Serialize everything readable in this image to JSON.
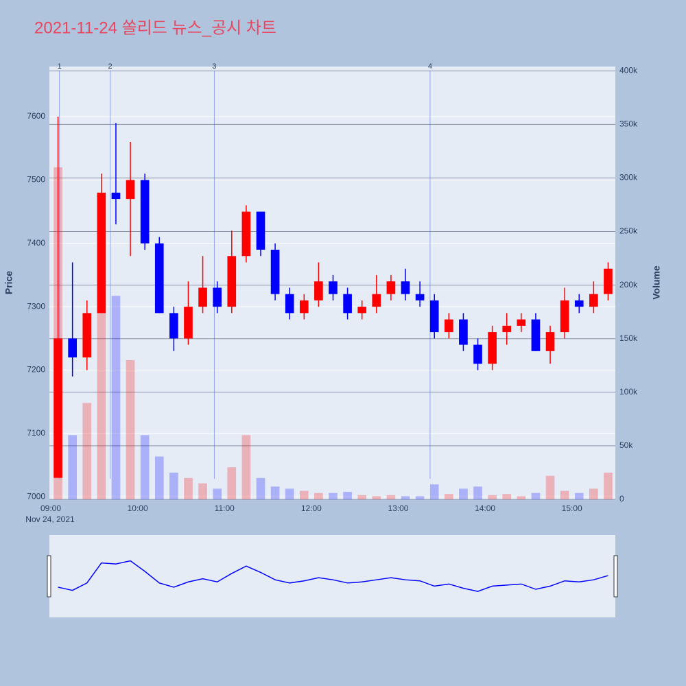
{
  "chart_data": {
    "type": "candlestick",
    "title": "2021-11-24 쏠리드 뉴스_공시 차트",
    "x": [
      "09:00",
      "09:10",
      "09:20",
      "09:30",
      "09:40",
      "09:50",
      "10:00",
      "10:10",
      "10:20",
      "10:30",
      "10:40",
      "10:50",
      "11:00",
      "11:10",
      "11:20",
      "11:30",
      "11:40",
      "11:50",
      "12:00",
      "12:10",
      "12:20",
      "12:30",
      "12:40",
      "12:50",
      "13:00",
      "13:10",
      "13:20",
      "13:30",
      "13:40",
      "13:50",
      "14:00",
      "14:10",
      "14:20",
      "14:30",
      "14:40",
      "14:50",
      "15:00",
      "15:10",
      "15:20"
    ],
    "open": [
      7030,
      7250,
      7220,
      7290,
      7480,
      7470,
      7500,
      7400,
      7290,
      7250,
      7300,
      7330,
      7300,
      7380,
      7450,
      7390,
      7320,
      7290,
      7310,
      7340,
      7320,
      7290,
      7300,
      7320,
      7340,
      7320,
      7310,
      7260,
      7280,
      7240,
      7210,
      7260,
      7270,
      7280,
      7230,
      7260,
      7310,
      7300,
      7320
    ],
    "high": [
      7600,
      7370,
      7310,
      7510,
      7590,
      7560,
      7510,
      7410,
      7300,
      7340,
      7380,
      7340,
      7420,
      7460,
      7450,
      7400,
      7330,
      7320,
      7370,
      7350,
      7330,
      7310,
      7350,
      7350,
      7360,
      7340,
      7320,
      7290,
      7290,
      7250,
      7270,
      7290,
      7290,
      7290,
      7270,
      7330,
      7320,
      7340,
      7370
    ],
    "low": [
      7030,
      7190,
      7200,
      7290,
      7430,
      7380,
      7390,
      7290,
      7230,
      7240,
      7290,
      7290,
      7290,
      7370,
      7380,
      7310,
      7280,
      7280,
      7300,
      7310,
      7280,
      7280,
      7290,
      7310,
      7310,
      7300,
      7250,
      7250,
      7230,
      7200,
      7200,
      7240,
      7260,
      7230,
      7210,
      7250,
      7290,
      7290,
      7310
    ],
    "close": [
      7250,
      7220,
      7290,
      7480,
      7470,
      7500,
      7400,
      7290,
      7250,
      7300,
      7330,
      7300,
      7380,
      7450,
      7390,
      7320,
      7290,
      7310,
      7340,
      7320,
      7290,
      7300,
      7320,
      7340,
      7320,
      7310,
      7260,
      7280,
      7240,
      7210,
      7260,
      7270,
      7280,
      7230,
      7260,
      7310,
      7300,
      7320,
      7360
    ],
    "volume": [
      310000,
      60000,
      90000,
      250000,
      190000,
      130000,
      60000,
      40000,
      25000,
      20000,
      15000,
      10000,
      30000,
      60000,
      20000,
      12000,
      10000,
      8000,
      6000,
      6000,
      7000,
      4000,
      3000,
      4000,
      3000,
      3000,
      14000,
      5000,
      10000,
      12000,
      4000,
      5000,
      3000,
      6000,
      22000,
      8000,
      6000,
      10000,
      25000
    ],
    "increasing_color": "#ff0000",
    "decreasing_color": "#0000ff",
    "xlim": [
      "09:00",
      "15:30"
    ],
    "xticks": [
      "09:00",
      "10:00",
      "11:00",
      "12:00",
      "13:00",
      "14:00",
      "15:00"
    ],
    "x_date": "Nov 24, 2021",
    "ylabel": "Price",
    "ylim": [
      6996,
      7679
    ],
    "yticks": [
      7000,
      7100,
      7200,
      7300,
      7400,
      7500,
      7600
    ],
    "y2label": "Volume",
    "y2lim": [
      0,
      404000
    ],
    "y2ticks": [
      0,
      {
        "value": 50000,
        "label": "50k"
      },
      {
        "value": 100000,
        "label": "100k"
      },
      {
        "value": 150000,
        "label": "150k"
      },
      {
        "value": 200000,
        "label": "200k"
      },
      {
        "value": 250000,
        "label": "250k"
      },
      {
        "value": 300000,
        "label": "300k"
      },
      {
        "value": 350000,
        "label": "350k"
      },
      {
        "value": 400000,
        "label": "400k"
      }
    ],
    "annotations": [
      {
        "x": "09:06",
        "label": "1"
      },
      {
        "x": "09:41",
        "label": "2"
      },
      {
        "x": "10:53",
        "label": "3"
      },
      {
        "x": "13:22",
        "label": "4"
      }
    ]
  }
}
